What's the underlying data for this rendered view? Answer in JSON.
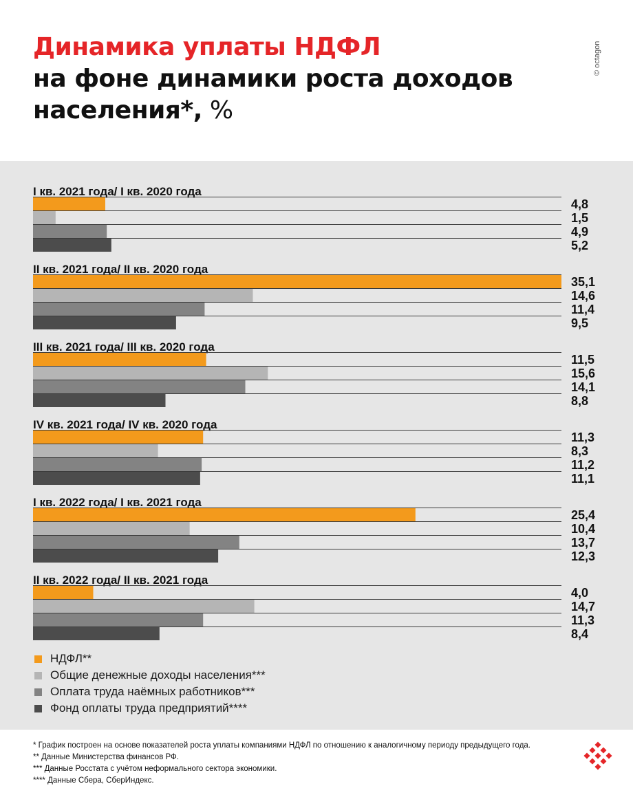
{
  "title": {
    "line1": "Динамика уплаты НДФЛ",
    "line2": "на фоне динамики роста доходов",
    "line3_bold": "населения*,",
    "line3_normal": " %"
  },
  "watermark": "© octagon",
  "colors": {
    "panel_bg": "#e6e6e6",
    "title_red": "#e52528",
    "ndfl": "#f39a1c",
    "income": "#b5b5b5",
    "wages": "#838383",
    "payroll": "#4c4c4c",
    "logo": "#e52528"
  },
  "chart_data": {
    "type": "bar",
    "orientation": "horizontal",
    "unit": "%",
    "xlim": [
      0,
      35.1
    ],
    "legend_position": "bottom-left",
    "series": [
      {
        "name": "НДФЛ**",
        "color": "#f39a1c"
      },
      {
        "name": "Общие денежные доходы населения***",
        "color": "#b5b5b5"
      },
      {
        "name": "Оплата труда наёмных работников***",
        "color": "#838383"
      },
      {
        "name": "Фонд оплаты труда предприятий****",
        "color": "#4c4c4c"
      }
    ],
    "groups": [
      {
        "label": "I кв. 2021 года/ I кв. 2020 года",
        "values": [
          4.8,
          1.5,
          4.9,
          5.2
        ],
        "value_labels": [
          "4,8",
          "1,5",
          "4,9",
          "5,2"
        ]
      },
      {
        "label": "II кв. 2021 года/ II кв. 2020 года",
        "values": [
          35.1,
          14.6,
          11.4,
          9.5
        ],
        "value_labels": [
          "35,1",
          "14,6",
          "11,4",
          "9,5"
        ]
      },
      {
        "label": "III кв. 2021 года/ III кв. 2020 года",
        "values": [
          11.5,
          15.6,
          14.1,
          8.8
        ],
        "value_labels": [
          "11,5",
          "15,6",
          "14,1",
          "8,8"
        ]
      },
      {
        "label": "IV кв. 2021 года/ IV кв. 2020 года",
        "values": [
          11.3,
          8.3,
          11.2,
          11.1
        ],
        "value_labels": [
          "11,3",
          "8,3",
          "11,2",
          "11,1"
        ]
      },
      {
        "label": "I кв. 2022 года/ I кв. 2021 года",
        "values": [
          25.4,
          10.4,
          13.7,
          12.3
        ],
        "value_labels": [
          "25,4",
          "10,4",
          "13,7",
          "12,3"
        ]
      },
      {
        "label": "II кв. 2022 года/ II кв. 2021 года",
        "values": [
          4.0,
          14.7,
          11.3,
          8.4
        ],
        "value_labels": [
          "4,0",
          "14,7",
          "11,3",
          "8,4"
        ]
      }
    ]
  },
  "footnotes": [
    "* График построен на основе показателей роста уплаты компаниями НДФЛ по отношению к аналогичному периоду предыдущего года.",
    "** Данные Министерства финансов РФ.",
    "*** Данные Росстата с учётом неформального сектора экономики.",
    "****  Данные Сбера, СберИндекс."
  ],
  "logo_icon": "octagon-logo-icon"
}
